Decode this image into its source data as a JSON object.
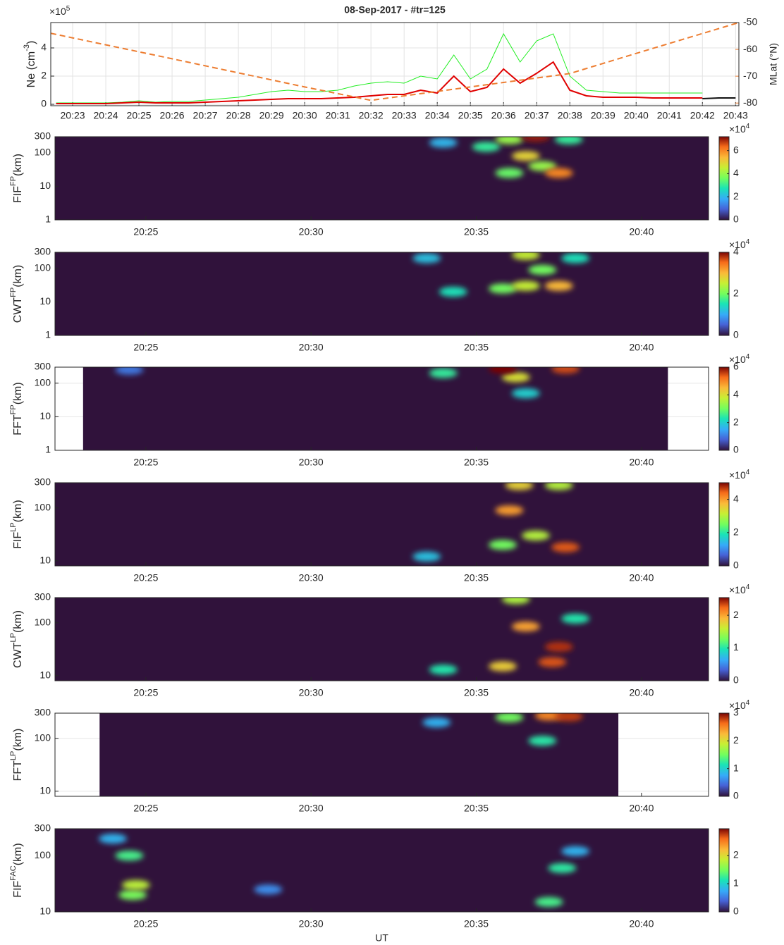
{
  "chart_data": [
    {
      "type": "line",
      "title": "08-Sep-2017 - #tr=125",
      "ylabel": {
        "text": "Ne (cm",
        "sup": "-3",
        "unit": ")"
      },
      "y_multiplier": {
        "base": "×10",
        "exponent": "5"
      },
      "y2label": "MLat (°N)",
      "xlim": [
        1222.34,
        1243.1
      ],
      "xticks": [
        {
          "value": 1223,
          "label": "20:23"
        },
        {
          "value": 1224,
          "label": "20:24"
        },
        {
          "value": 1225,
          "label": "20:25"
        },
        {
          "value": 1226,
          "label": "20:26"
        },
        {
          "value": 1227,
          "label": "20:27"
        },
        {
          "value": 1228,
          "label": "20:28"
        },
        {
          "value": 1229,
          "label": "20:29"
        },
        {
          "value": 1230,
          "label": "20:30"
        },
        {
          "value": 1231,
          "label": "20:31"
        },
        {
          "value": 1232,
          "label": "20:32"
        },
        {
          "value": 1233,
          "label": "20:33"
        },
        {
          "value": 1234,
          "label": "20:34"
        },
        {
          "value": 1235,
          "label": "20:35"
        },
        {
          "value": 1236,
          "label": "20:36"
        },
        {
          "value": 1237,
          "label": "20:37"
        },
        {
          "value": 1238,
          "label": "20:38"
        },
        {
          "value": 1239,
          "label": "20:39"
        },
        {
          "value": 1240,
          "label": "20:40"
        },
        {
          "value": 1241,
          "label": "20:41"
        },
        {
          "value": 1242,
          "label": "20:42"
        },
        {
          "value": 1243,
          "label": "20:43"
        }
      ],
      "ylim": [
        -0.1,
        5.8
      ],
      "yticks": [
        0,
        2,
        4
      ],
      "y2lim": [
        -81,
        -50
      ],
      "y2ticks": [
        -80,
        -70,
        -60,
        -50
      ],
      "y2color": "#ed7d31",
      "grid": true,
      "series": [
        {
          "color": "#22ee22",
          "width": 1,
          "x": [
            1222.5,
            1223,
            1223.5,
            1224,
            1224.5,
            1225,
            1225.5,
            1226,
            1226.5,
            1227,
            1227.5,
            1228,
            1228.5,
            1229,
            1229.5,
            1230,
            1230.5,
            1231,
            1231.5,
            1232,
            1232.5,
            1233,
            1233.5,
            1234,
            1234.5,
            1235,
            1235.5,
            1236,
            1236.5,
            1237,
            1237.5,
            1238,
            1238.5,
            1239,
            1239.5,
            1240,
            1240.5,
            1241,
            1241.5,
            1242
          ],
          "values": [
            0.1,
            0.1,
            0.1,
            0.1,
            0.15,
            0.25,
            0.15,
            0.2,
            0.2,
            0.3,
            0.4,
            0.5,
            0.7,
            0.9,
            1.0,
            0.9,
            0.9,
            1.0,
            1.3,
            1.5,
            1.6,
            1.5,
            2.0,
            1.8,
            3.5,
            1.8,
            2.5,
            5.0,
            3.0,
            4.5,
            5.0,
            2.0,
            1.0,
            0.9,
            0.8,
            0.8,
            0.8,
            0.8,
            0.8,
            0.8
          ]
        },
        {
          "color": "#e00000",
          "width": 2,
          "x": [
            1222.5,
            1223,
            1223.5,
            1224,
            1224.5,
            1225,
            1225.5,
            1226,
            1226.5,
            1227,
            1227.5,
            1228,
            1228.5,
            1229,
            1229.5,
            1230,
            1230.5,
            1231,
            1231.5,
            1232,
            1232.5,
            1233,
            1233.5,
            1234,
            1234.5,
            1235,
            1235.5,
            1236,
            1236.5,
            1237,
            1237.5,
            1238,
            1238.5,
            1239,
            1239.5,
            1240,
            1240.5,
            1241,
            1241.5,
            1242
          ],
          "values": [
            0.05,
            0.05,
            0.05,
            0.05,
            0.1,
            0.15,
            0.1,
            0.1,
            0.1,
            0.15,
            0.2,
            0.25,
            0.3,
            0.35,
            0.4,
            0.4,
            0.4,
            0.45,
            0.5,
            0.6,
            0.7,
            0.7,
            1.0,
            0.8,
            2.0,
            0.9,
            1.2,
            2.5,
            1.5,
            2.2,
            3.0,
            1.0,
            0.6,
            0.5,
            0.5,
            0.5,
            0.45,
            0.45,
            0.45,
            0.45
          ]
        },
        {
          "color": "#111111",
          "width": 2,
          "x": [
            1242,
            1242.5,
            1243
          ],
          "values": [
            0.4,
            0.45,
            0.45
          ]
        },
        {
          "color": "#ed7d31",
          "width": 2,
          "dash": true,
          "axis": "y2",
          "x": [
            1222.34,
            1226,
            1230,
            1232,
            1238,
            1240,
            1243.1
          ],
          "values": [
            -54,
            -63.5,
            -74,
            -79,
            -69,
            -61.5,
            -50
          ]
        }
      ]
    },
    {
      "type": "heatmap",
      "ylabel": {
        "text": "FIF",
        "sup": "FP",
        "unit": "(km)"
      },
      "log_y": true,
      "xlim": [
        1222.25,
        1242.03
      ],
      "extent": [
        1222.25,
        1242.03
      ],
      "xticks": [
        {
          "value": 1225,
          "label": "20:25"
        },
        {
          "value": 1230,
          "label": "20:30"
        },
        {
          "value": 1235,
          "label": "20:35"
        },
        {
          "value": 1240,
          "label": "20:40"
        }
      ],
      "ylim": [
        1,
        300
      ],
      "yticks": [
        1,
        10,
        100,
        300
      ],
      "clim": [
        0,
        7.2
      ],
      "cticks": [
        0,
        2,
        4,
        6
      ],
      "c_multiplier": {
        "base": "×10",
        "exponent": "4"
      },
      "x": [
        1234,
        1235.3,
        1236,
        1236.5,
        1236.8,
        1236,
        1237,
        1237.5,
        1237.8
      ],
      "y": [
        200,
        150,
        250,
        80,
        300,
        25,
        40,
        25,
        250
      ],
      "values": [
        2,
        3,
        4,
        5,
        7,
        3.5,
        4,
        6,
        3
      ]
    },
    {
      "type": "heatmap",
      "ylabel": {
        "text": "CWT",
        "sup": "FP",
        "unit": "(km)"
      },
      "log_y": true,
      "xlim": [
        1222.25,
        1242.03
      ],
      "extent": [
        1222.25,
        1242.03
      ],
      "xticks": [
        {
          "value": 1225,
          "label": "20:25"
        },
        {
          "value": 1230,
          "label": "20:30"
        },
        {
          "value": 1235,
          "label": "20:35"
        },
        {
          "value": 1240,
          "label": "20:40"
        }
      ],
      "ylim": [
        1,
        300
      ],
      "yticks": [
        1,
        10,
        100,
        300
      ],
      "clim": [
        0,
        4
      ],
      "cticks": [
        0,
        2,
        4
      ],
      "c_multiplier": {
        "base": "×10",
        "exponent": "4"
      },
      "x": [
        1233.5,
        1234.3,
        1235.8,
        1236.5,
        1236.5,
        1237,
        1237.5,
        1238
      ],
      "y": [
        200,
        20,
        25,
        250,
        30,
        90,
        30,
        200
      ],
      "values": [
        1.2,
        1.5,
        2,
        2.5,
        2.5,
        2,
        3,
        1.5
      ]
    },
    {
      "type": "heatmap",
      "ylabel": {
        "text": "FFT",
        "sup": "FP",
        "unit": "(km)"
      },
      "log_y": true,
      "xlim": [
        1222.25,
        1242.03
      ],
      "extent": [
        1223.1,
        1240.8
      ],
      "xticks": [
        {
          "value": 1225,
          "label": "20:25"
        },
        {
          "value": 1230,
          "label": "20:30"
        },
        {
          "value": 1235,
          "label": "20:35"
        },
        {
          "value": 1240,
          "label": "20:40"
        }
      ],
      "ylim": [
        1,
        300
      ],
      "yticks": [
        1,
        10,
        100,
        300
      ],
      "clim": [
        0,
        6
      ],
      "cticks": [
        0,
        2,
        4,
        6
      ],
      "c_multiplier": {
        "base": "×10",
        "exponent": "4"
      },
      "x": [
        1224.5,
        1234,
        1236.5,
        1236.2,
        1235.8,
        1237.7
      ],
      "y": [
        250,
        200,
        50,
        150,
        270,
        270
      ],
      "values": [
        1,
        2.5,
        2,
        4,
        6,
        5.5
      ]
    },
    {
      "type": "heatmap",
      "ylabel": {
        "text": "FIF",
        "sup": "LP",
        "unit": "(km)"
      },
      "log_y": true,
      "xlim": [
        1222.25,
        1242.03
      ],
      "extent": [
        1222.25,
        1242.03
      ],
      "xticks": [
        {
          "value": 1225,
          "label": "20:25"
        },
        {
          "value": 1230,
          "label": "20:30"
        },
        {
          "value": 1235,
          "label": "20:35"
        },
        {
          "value": 1240,
          "label": "20:40"
        }
      ],
      "ylim": [
        8,
        300
      ],
      "yticks": [
        10,
        100,
        300
      ],
      "clim": [
        0,
        5
      ],
      "cticks": [
        0,
        2,
        4
      ],
      "c_multiplier": {
        "base": "×10",
        "exponent": "4"
      },
      "x": [
        1233.5,
        1235.8,
        1236.8,
        1237.5,
        1236.3,
        1236,
        1237.7
      ],
      "y": [
        12,
        20,
        30,
        270,
        270,
        90,
        18
      ],
      "values": [
        1.5,
        2.5,
        3,
        3,
        3.5,
        4,
        4.5
      ]
    },
    {
      "type": "heatmap",
      "ylabel": {
        "text": "CWT",
        "sup": "LP",
        "unit": "(km)"
      },
      "log_y": true,
      "xlim": [
        1222.25,
        1242.03
      ],
      "extent": [
        1222.25,
        1242.03
      ],
      "xticks": [
        {
          "value": 1225,
          "label": "20:25"
        },
        {
          "value": 1230,
          "label": "20:30"
        },
        {
          "value": 1235,
          "label": "20:35"
        },
        {
          "value": 1240,
          "label": "20:40"
        }
      ],
      "ylim": [
        8,
        300
      ],
      "yticks": [
        10,
        100,
        300
      ],
      "clim": [
        0,
        2.54
      ],
      "cticks": [
        0,
        1,
        2
      ],
      "c_multiplier": {
        "base": "×10",
        "exponent": "4"
      },
      "x": [
        1234,
        1238,
        1236.2,
        1235.8,
        1236.5,
        1237.3,
        1237.5
      ],
      "y": [
        13,
        120,
        280,
        15,
        85,
        18,
        35
      ],
      "values": [
        1,
        1,
        1.5,
        1.8,
        2,
        2.3,
        2.4
      ]
    },
    {
      "type": "heatmap",
      "ylabel": {
        "text": "FFT",
        "sup": "LP",
        "unit": "(km)"
      },
      "log_y": true,
      "xlim": [
        1222.25,
        1242.03
      ],
      "extent": [
        1223.6,
        1239.3
      ],
      "xticks": [
        {
          "value": 1225,
          "label": "20:25"
        },
        {
          "value": 1230,
          "label": "20:30"
        },
        {
          "value": 1235,
          "label": "20:35"
        },
        {
          "value": 1240,
          "label": "20:40"
        }
      ],
      "ylim": [
        8,
        300
      ],
      "yticks": [
        10,
        100,
        300
      ],
      "clim": [
        0,
        3
      ],
      "cticks": [
        0,
        1,
        2,
        3
      ],
      "c_multiplier": {
        "base": "×10",
        "exponent": "4"
      },
      "x": [
        1233.8,
        1237,
        1236,
        1237.2,
        1237.8
      ],
      "y": [
        200,
        90,
        250,
        270,
        260
      ],
      "values": [
        0.8,
        1.2,
        1.5,
        2.5,
        2.8
      ]
    },
    {
      "type": "heatmap",
      "ylabel": {
        "text": "FIF",
        "sup": "FAC",
        "unit": "(km)"
      },
      "log_y": true,
      "xlabel": "UT",
      "xlim": [
        1222.25,
        1242.03
      ],
      "extent": [
        1222.25,
        1242.03
      ],
      "xticks": [
        {
          "value": 1225,
          "label": "20:25"
        },
        {
          "value": 1230,
          "label": "20:30"
        },
        {
          "value": 1235,
          "label": "20:35"
        },
        {
          "value": 1240,
          "label": "20:40"
        }
      ],
      "ylim": [
        10,
        300
      ],
      "yticks": [
        10,
        100,
        300
      ],
      "clim": [
        0,
        2.95
      ],
      "cticks": [
        0,
        1,
        2
      ],
      "x": [
        1228.7,
        1224,
        1238,
        1237.6,
        1224.5,
        1237.2,
        1224.6,
        1224.7
      ],
      "y": [
        25,
        200,
        120,
        60,
        100,
        15,
        20,
        30
      ],
      "values": [
        0.6,
        0.8,
        0.8,
        1.2,
        1.3,
        1.3,
        1.5,
        1.8
      ]
    }
  ]
}
